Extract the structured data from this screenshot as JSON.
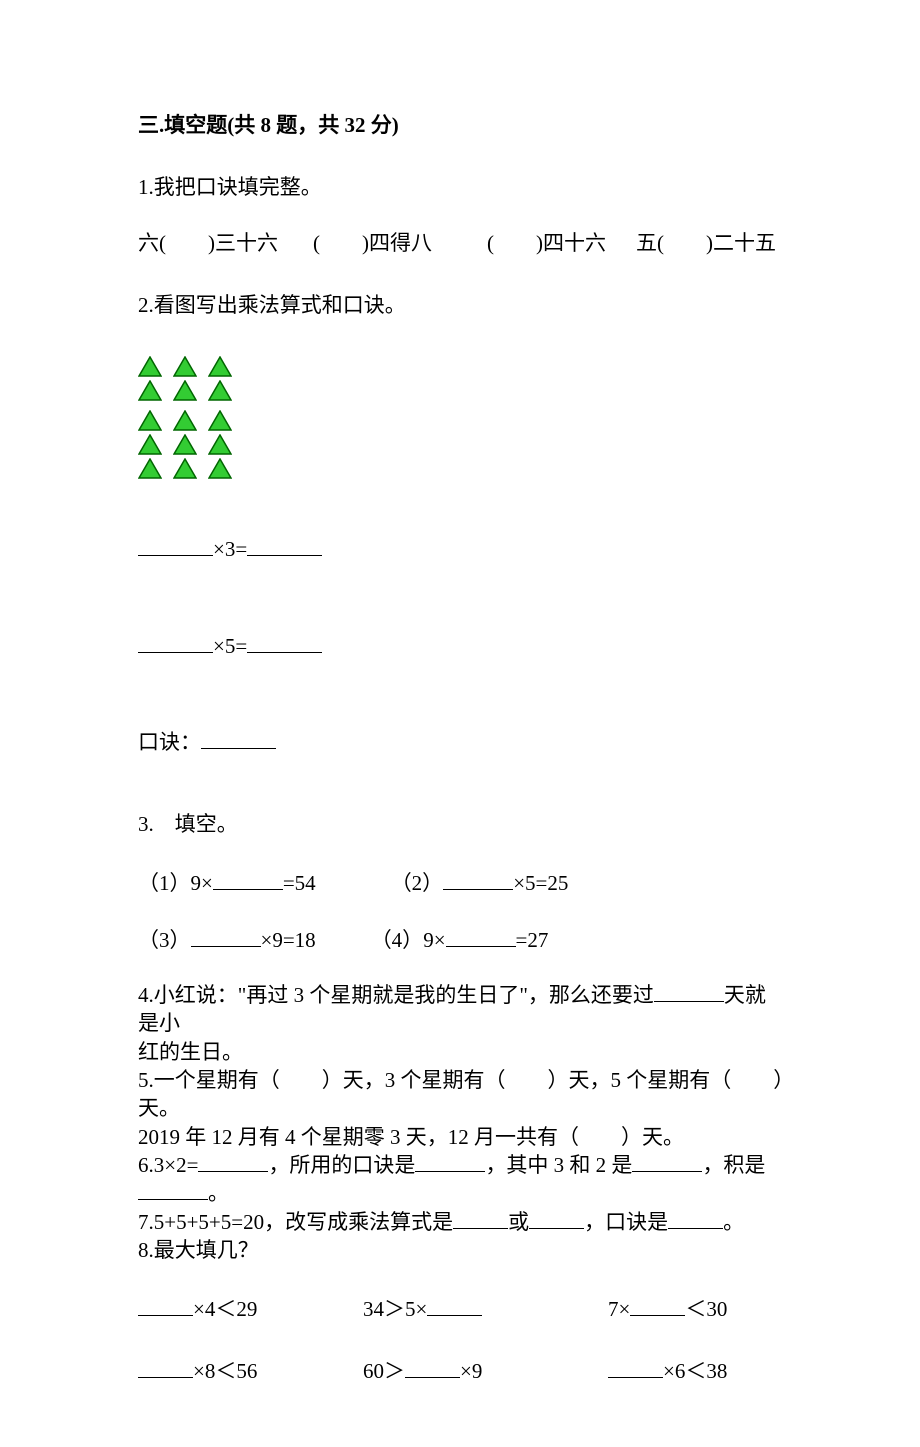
{
  "sectionTitle": "三.填空题(共 8 题，共 32 分)",
  "q1": {
    "prompt": "1.我把口诀填完整。",
    "items": [
      "六(　　)三十六",
      "(　　)四得八",
      "(　　)四十六",
      "五(　　)二十五"
    ]
  },
  "q2": {
    "prompt": "2.看图写出乘法算式和口诀。",
    "triangle": {
      "rows": 5,
      "cols": 3,
      "groupSplit": 2,
      "fillColor": "#33cc33",
      "strokeColor": "#006600"
    },
    "eq1Label": "×3=",
    "eq2Label": "×5=",
    "koujueLabel": "口诀："
  },
  "q3": {
    "prompt": "3.　填空。",
    "items": [
      {
        "num": "（1）",
        "left": "9×",
        "right": "=54"
      },
      {
        "num": "（2）",
        "left": "",
        "right": "×5=25"
      },
      {
        "num": "（3）",
        "left": "",
        "right": "×9=18"
      },
      {
        "num": "（4）",
        "left": "9×",
        "right": "=27"
      }
    ]
  },
  "q4": {
    "line1": "4.小红说：\"再过 3 个星期就是我的生日了\"，那么还要过",
    "line1b": "天就是小",
    "line2": "红的生日。"
  },
  "q5": {
    "line1": "5.一个星期有（　　）天，3 个星期有（　　）天，5 个星期有（　　）天。",
    "line2": "2019 年 12 月有 4 个星期零 3 天，12 月一共有（　　）天。"
  },
  "q6": {
    "part1": "6.3×2=",
    "part2": "，所用的口诀是",
    "part3": "，其中 3 和 2 是",
    "part4": "，积是",
    "part5": "。"
  },
  "q7": {
    "part1": "7.5+5+5+5=20，改写成乘法算式是",
    "part2": "或",
    "part3": "，口诀是",
    "part4": "。"
  },
  "q8": {
    "prompt": "8.最大填几？",
    "items": [
      "×4＜29",
      "34＞5×",
      "7×　　　＜30",
      "×8＜56",
      "60＞　　　×9",
      "×6＜38"
    ]
  }
}
